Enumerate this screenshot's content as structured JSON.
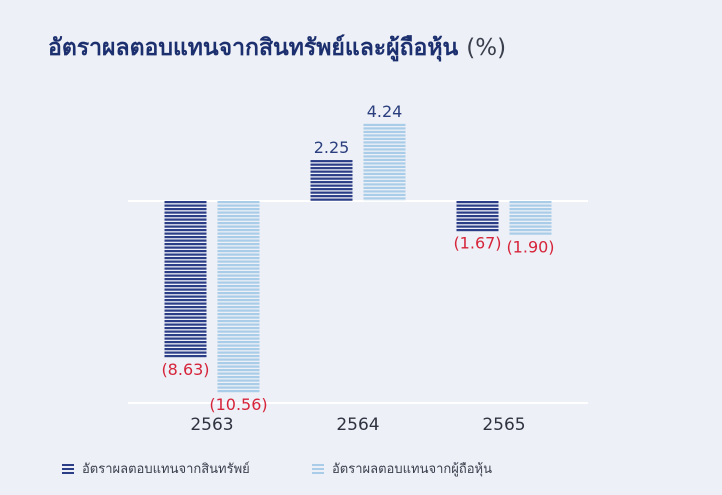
{
  "title": {
    "main": "อัตราผลตอบแทนจากสินทรัพย์และผู้ถือหุ้น",
    "unit": "(%)"
  },
  "colors": {
    "background": "#edf0f6",
    "series_dark": "#2a3d86",
    "series_light": "#a9cde9",
    "positive_label": "#2b3f7e",
    "negative_label": "#d6243a",
    "axis_label": "#2f3340"
  },
  "chart_data": {
    "type": "bar",
    "title": "อัตราผลตอบแทนจากสินทรัพย์และผู้ถือหุ้น (%)",
    "categories": [
      "2563",
      "2564",
      "2565"
    ],
    "series": [
      {
        "name": "อัตราผลตอบแทนจากสินทรัพย์",
        "values": [
          -8.63,
          2.25,
          -1.67
        ],
        "labels": [
          "(8.63)",
          "2.25",
          "(1.67)"
        ]
      },
      {
        "name": "อัตราผลตอบแทนจากผู้ถือหุ้น",
        "values": [
          -10.56,
          4.24,
          -1.9
        ],
        "labels": [
          "(10.56)",
          "4.24",
          "(1.90)"
        ]
      }
    ],
    "ylim": [
      -13,
      5.5
    ],
    "legend_position": "bottom"
  }
}
